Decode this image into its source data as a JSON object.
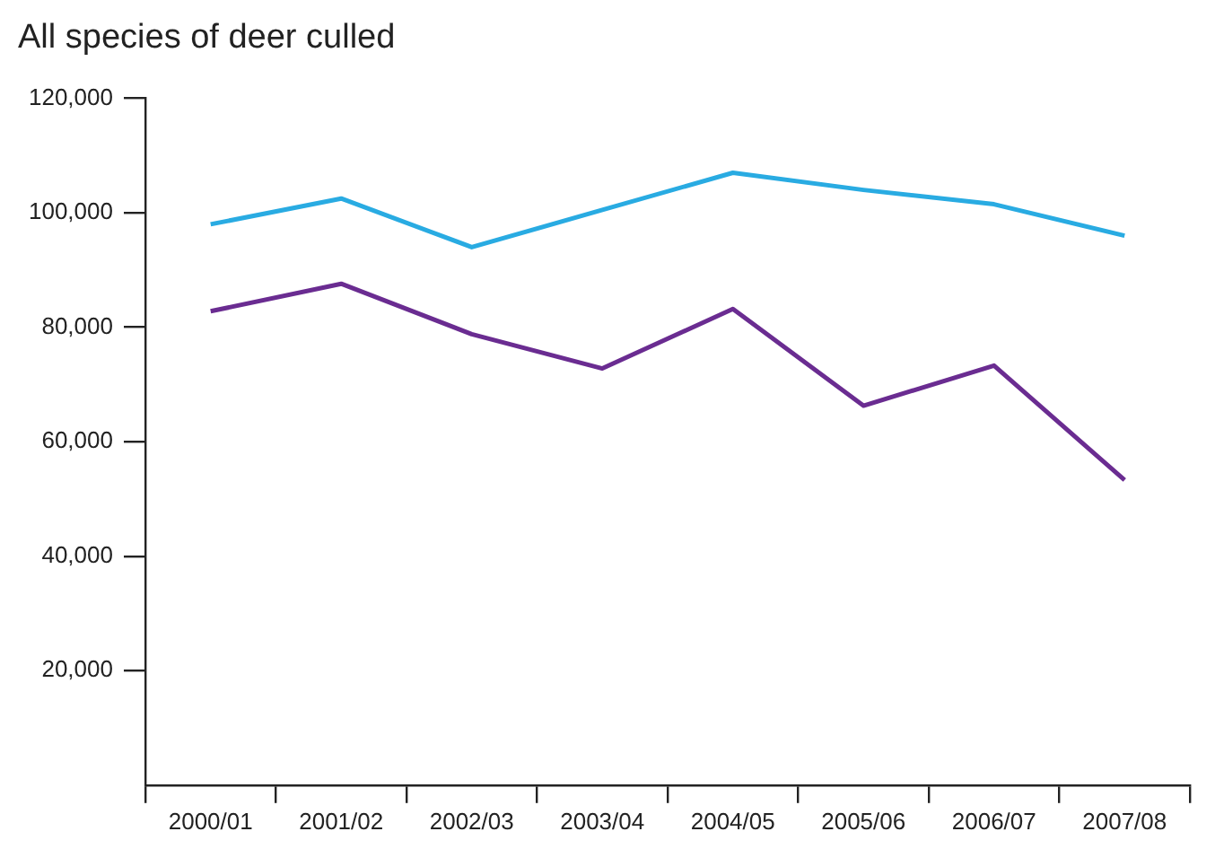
{
  "chart_data": {
    "type": "line",
    "title": "All species of deer culled",
    "categories": [
      "2000/01",
      "2001/02",
      "2002/03",
      "2003/04",
      "2004/05",
      "2005/06",
      "2006/07",
      "2007/08"
    ],
    "series": [
      {
        "color": "#29abe2",
        "values": [
          98000,
          102500,
          94000,
          100500,
          107000,
          104000,
          101500,
          96000
        ]
      },
      {
        "color": "#6a2c91",
        "values": [
          82800,
          87600,
          78800,
          72800,
          83200,
          66300,
          73300,
          53300
        ]
      }
    ],
    "ylim": [
      0,
      120000
    ],
    "yticks": [
      {
        "value": 20000,
        "label": "20,000"
      },
      {
        "value": 40000,
        "label": "40,000"
      },
      {
        "value": 60000,
        "label": "60,000"
      },
      {
        "value": 80000,
        "label": "80,000"
      },
      {
        "value": 100000,
        "label": "100,000"
      },
      {
        "value": 120000,
        "label": "120,000"
      }
    ],
    "grid": false,
    "legend": false,
    "marker": "none",
    "line_style": "solid"
  }
}
